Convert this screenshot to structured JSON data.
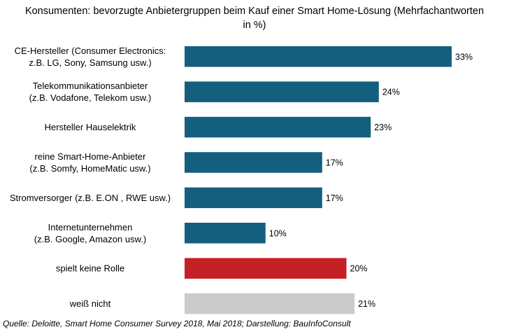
{
  "title": "Konsumenten:  bevorzugte  Anbietergruppen  beim Kauf einer Smart Home-Lösung  (Mehrfachantworten\nin %)",
  "source": "Quelle: Deloitte, Smart Home Consumer Survey 2018, Mai 2018; Darstellung: BauInfoConsult",
  "colors": {
    "primary": "#155f7e",
    "keine_rolle": "#c42127",
    "weiss_nicht": "#cbcbcb"
  },
  "chart_data": {
    "type": "bar",
    "orientation": "horizontal",
    "title": "Konsumenten:  bevorzugte  Anbietergruppen  beim Kauf einer Smart Home-Lösung  (Mehrfachantworten\nin %)",
    "xlabel": "",
    "ylabel": "",
    "xlim": [
      0,
      33
    ],
    "grid": false,
    "legend": "none",
    "value_suffix": "%",
    "categories": [
      "CE-Hersteller (Consumer Electronics:\nz.B. LG, Sony, Samsung usw.)",
      "Telekommunikationsanbieter\n(z.B. Vodafone, Telekom usw.)",
      "Hersteller Hauselektrik",
      "reine Smart-Home-Anbieter\n(z.B. Somfy, HomeMatic usw.)",
      "Stromversorger (z.B. E.ON , RWE usw.)",
      "Internetunternehmen\n(z.B. Google, Amazon usw.)",
      "spielt keine Rolle",
      "weiß nicht"
    ],
    "values": [
      33,
      24,
      23,
      17,
      17,
      10,
      20,
      21
    ],
    "bar_colors": [
      "primary",
      "primary",
      "primary",
      "primary",
      "primary",
      "primary",
      "keine_rolle",
      "weiss_nicht"
    ]
  }
}
